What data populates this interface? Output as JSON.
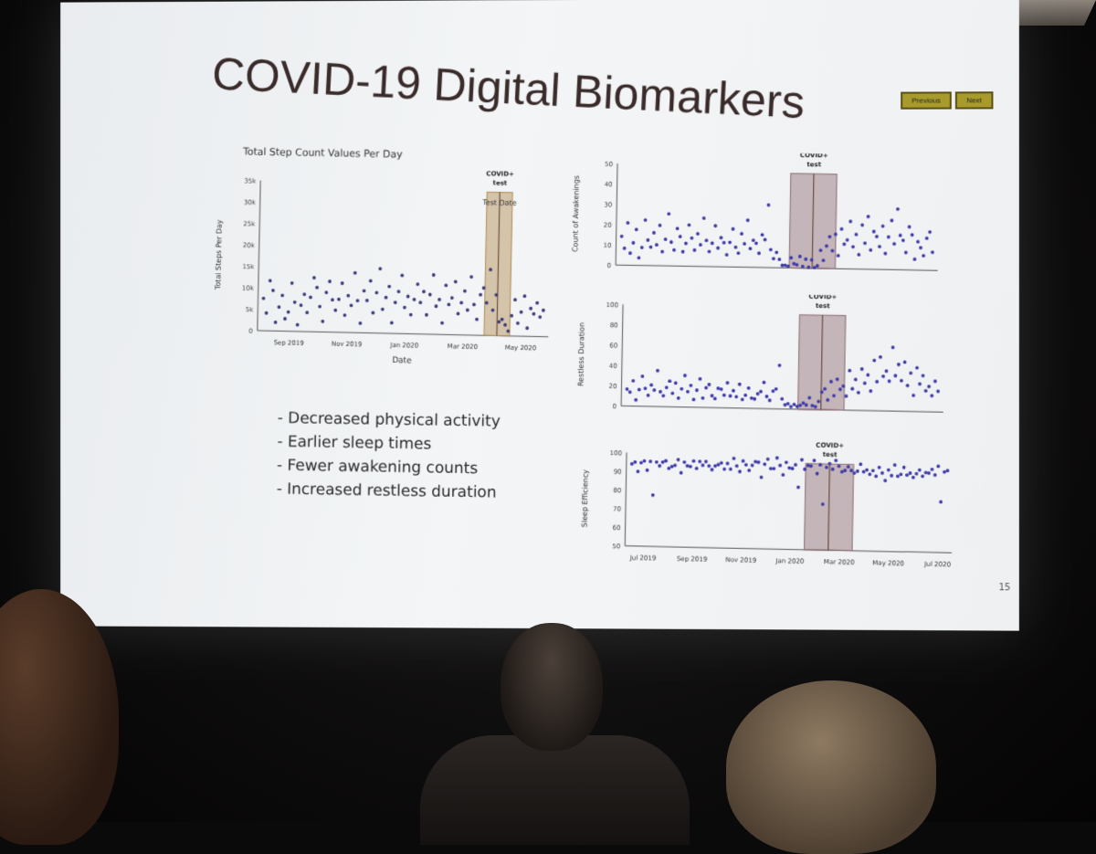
{
  "slide": {
    "title": "COVID-19 Digital Biomarkers",
    "nav": {
      "previous": "Previous",
      "next": "Next"
    },
    "page_number": "15",
    "bullets": [
      "- Decreased physical activity",
      "- Earlier sleep times",
      "- Fewer awakening counts",
      "- Increased restless duration"
    ]
  },
  "chart_data": [
    {
      "type": "scatter",
      "title": "Total Step Count Values Per Day",
      "xlabel": "Date",
      "ylabel": "Total Steps Per Day",
      "x_ticks": [
        "Sep 2019",
        "Nov 2019",
        "Jan 2020",
        "Mar 2020",
        "May 2020"
      ],
      "y_ticks": [
        "0",
        "5k",
        "10k",
        "15k",
        "20k",
        "25k",
        "30k",
        "35k"
      ],
      "ylim": [
        0,
        35000
      ],
      "annotation": {
        "label": "COVID+ test",
        "line_label": "Test Date"
      },
      "color": "#3b3a7a",
      "highlight_color": "#b08a4e",
      "series": [
        {
          "values": [
            7000,
            4000,
            12000,
            9000,
            2000,
            6000,
            8000,
            3000,
            5000,
            11000,
            7000,
            1000,
            6000,
            9000,
            4000,
            8000,
            13000,
            10000,
            6000,
            3000,
            9000,
            12000,
            7000,
            5000,
            8000,
            11000,
            4000,
            9000,
            6000,
            14000,
            8000,
            2000,
            10000,
            7000,
            12000,
            5000,
            9000,
            15000,
            6000,
            8000,
            11000,
            3000,
            7000,
            10000,
            13000,
            6000,
            9000,
            4000,
            8000,
            12000,
            7000,
            10000,
            5000,
            9000,
            14000,
            6000,
            8000,
            3000,
            11000,
            7000,
            9000,
            12000,
            5000,
            8000,
            10000,
            6000,
            13000,
            7000,
            4000,
            9000,
            11000,
            8000,
            15000,
            6000,
            10000,
            3000,
            4000,
            2000,
            1000,
            5000,
            8000,
            3000,
            6000,
            9000,
            2000,
            7000,
            5000,
            8000,
            4000,
            6000
          ]
        }
      ]
    },
    {
      "type": "scatter",
      "ylabel": "Count of Awakenings",
      "y_ticks": [
        "0",
        "10",
        "20",
        "30",
        "40",
        "50"
      ],
      "ylim": [
        0,
        50
      ],
      "annotation": {
        "label": "COVID+ test"
      },
      "color": "#3f3aa8",
      "highlight_color": "#8b6a72",
      "series": [
        {
          "values": [
            14,
            9,
            20,
            6,
            12,
            17,
            4,
            10,
            22,
            13,
            8,
            16,
            11,
            19,
            7,
            14,
            25,
            12,
            9,
            18,
            15,
            6,
            11,
            21,
            13,
            8,
            17,
            10,
            24,
            14,
            7,
            12,
            19,
            9,
            15,
            11,
            6,
            13,
            18,
            10,
            8,
            16,
            12,
            22,
            9,
            14,
            11,
            7,
            17,
            13,
            31,
            10,
            4,
            8,
            3,
            1,
            2,
            0,
            5,
            3,
            1,
            6,
            2,
            4,
            1,
            3,
            0,
            2,
            8,
            4,
            12,
            15,
            9,
            18,
            6,
            20,
            11,
            14,
            24,
            10,
            17,
            8,
            21,
            13,
            27,
            9,
            19,
            15,
            11,
            22,
            7,
            16,
            25,
            12,
            30,
            18,
            14,
            9,
            20,
            17,
            6,
            13,
            11,
            8,
            15,
            19,
            10
          ]
        }
      ]
    },
    {
      "type": "scatter",
      "ylabel": "Restless Duration",
      "y_ticks": [
        "0",
        "20",
        "40",
        "60",
        "80",
        "100"
      ],
      "ylim": [
        0,
        100
      ],
      "annotation": {
        "label": "COVID+ test"
      },
      "color": "#3f3aa8",
      "highlight_color": "#8b6a72",
      "series": [
        {
          "values": [
            18,
            12,
            25,
            8,
            15,
            30,
            20,
            10,
            22,
            14,
            35,
            16,
            9,
            19,
            27,
            12,
            24,
            11,
            17,
            32,
            13,
            21,
            9,
            15,
            28,
            11,
            18,
            23,
            14,
            8,
            20,
            16,
            12,
            26,
            10,
            17,
            13,
            22,
            9,
            15,
            19,
            11,
            7,
            14,
            18,
            24,
            12,
            10,
            16,
            20,
            45,
            9,
            5,
            3,
            2,
            6,
            1,
            4,
            8,
            3,
            12,
            6,
            2,
            9,
            15,
            20,
            11,
            26,
            14,
            32,
            19,
            24,
            16,
            38,
            22,
            28,
            17,
            42,
            25,
            35,
            21,
            48,
            29,
            55,
            33,
            40,
            27,
            62,
            36,
            44,
            30,
            50,
            24,
            38,
            18,
            42,
            28,
            33,
            20,
            26,
            14,
            30,
            22
          ]
        }
      ]
    },
    {
      "type": "scatter",
      "ylabel": "Sleep Efficiency",
      "x_ticks": [
        "Jul 2019",
        "Sep 2019",
        "Nov 2019",
        "Jan 2020",
        "Mar 2020",
        "May 2020",
        "Jul 2020"
      ],
      "y_ticks": [
        "50",
        "60",
        "70",
        "80",
        "90",
        "100"
      ],
      "ylim": [
        50,
        100
      ],
      "annotation": {
        "label": "COVID+ test"
      },
      "color": "#3f3aa8",
      "highlight_color": "#8b6a72",
      "series": [
        {
          "values": [
            93,
            95,
            91,
            94,
            96,
            92,
            95,
            78,
            94,
            93,
            96,
            95,
            92,
            94,
            93,
            97,
            91,
            95,
            94,
            92,
            96,
            93,
            95,
            94,
            97,
            93,
            92,
            95,
            94,
            96,
            91,
            95,
            93,
            97,
            94,
            92,
            96,
            95,
            93,
            94,
            97,
            95,
            88,
            96,
            97,
            93,
            94,
            98,
            95,
            91,
            96,
            94,
            92,
            95,
            84,
            97,
            93,
            96,
            94,
            98,
            92,
            95,
            75,
            93,
            96,
            94,
            97,
            95,
            93,
            92,
            95,
            94,
            91,
            93,
            95,
            92,
            94,
            90,
            93,
            91,
            94,
            92,
            89,
            93,
            91,
            95,
            90,
            92,
            94,
            91,
            93,
            89,
            92,
            95,
            90,
            93,
            91,
            94,
            92,
            95,
            77,
            94,
            93
          ]
        }
      ]
    }
  ]
}
